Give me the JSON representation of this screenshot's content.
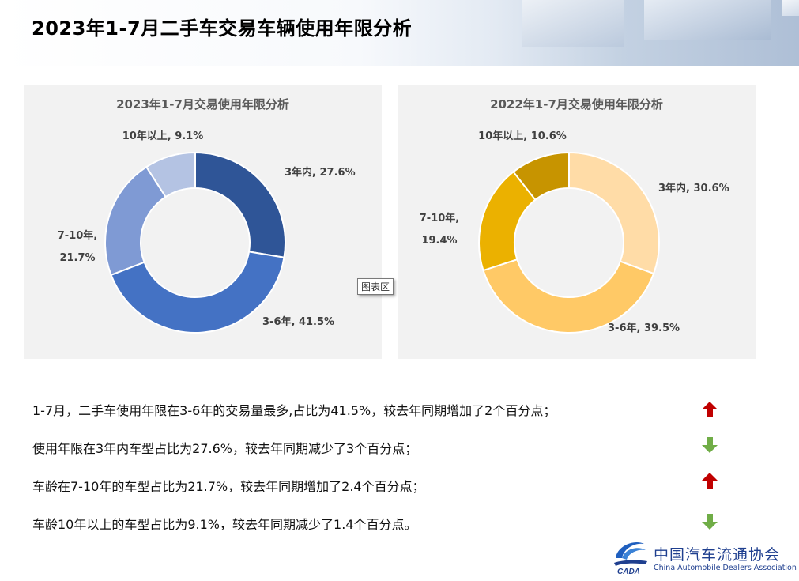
{
  "header": {
    "title": "2023年1-7月二手车交易车辆使用年限分析"
  },
  "chart_data": [
    {
      "type": "donut",
      "title": "2023年1-7月交易使用年限分析",
      "categories": [
        "3年内",
        "3-6年",
        "7-10年",
        "10年以上"
      ],
      "values": [
        27.6,
        41.5,
        21.7,
        9.1
      ],
      "unit": "%",
      "colors": [
        "#2f5597",
        "#4472c4",
        "#7f9ad4",
        "#b4c3e3"
      ],
      "labels": [
        {
          "lines": [
            "3年内, 27.6%"
          ]
        },
        {
          "lines": [
            "3-6年, 41.5%"
          ]
        },
        {
          "lines": [
            "7-10年,",
            "21.7%"
          ]
        },
        {
          "lines": [
            "10年以上, 9.1%"
          ]
        }
      ]
    },
    {
      "type": "donut",
      "title": "2022年1-7月交易使用年限分析",
      "categories": [
        "3年内",
        "3-6年",
        "7-10年",
        "10年以上"
      ],
      "values": [
        30.6,
        39.5,
        19.4,
        10.6
      ],
      "unit": "%",
      "colors": [
        "#ffdca7",
        "#ffc966",
        "#ebb100",
        "#c79400"
      ],
      "labels": [
        {
          "lines": [
            "3年内, 30.6%"
          ]
        },
        {
          "lines": [
            "3-6年, 39.5%"
          ]
        },
        {
          "lines": [
            "7-10年,",
            "19.4%"
          ]
        },
        {
          "lines": [
            "10年以上, 10.6%"
          ]
        }
      ]
    }
  ],
  "tooltip": "图表区",
  "notes": [
    {
      "text": "1-7月，二手车使用年限在3-6年的交易量最多,占比为41.5%，较去年同期增加了2个百分点；",
      "trend": "up",
      "icon": "red-up-arrow-icon",
      "color": "#c00000"
    },
    {
      "text": "使用年限在3年内车型占比为27.6%，较去年同期减少了3个百分点；",
      "trend": "down",
      "icon": "green-down-arrow-icon",
      "color": "#70ad47"
    },
    {
      "text": "车龄在7-10年的车型占比为21.7%，较去年同期增加了2.4个百分点；",
      "trend": "up",
      "icon": "red-up-arrow-icon",
      "color": "#c00000"
    },
    {
      "text": "车龄10年以上的车型占比为9.1%，较去年同期减少了1.4个百分点。",
      "trend": "down",
      "icon": "green-down-arrow-icon",
      "color": "#70ad47"
    }
  ],
  "logo": {
    "name_cn": "中国汽车流通协会",
    "name_en": "China Automobile Dealers Association",
    "mark_text": "CADA"
  }
}
